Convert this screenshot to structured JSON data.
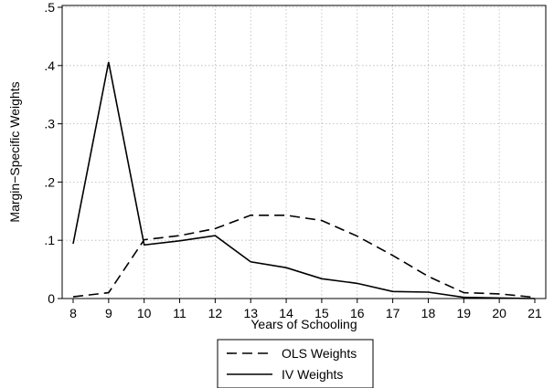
{
  "chart_data": {
    "type": "line",
    "title": "",
    "xlabel": "Years of Schooling",
    "ylabel": "Margin−Specific Weights",
    "x": [
      8,
      9,
      10,
      11,
      12,
      13,
      14,
      15,
      16,
      17,
      18,
      19,
      20,
      21
    ],
    "xlim": [
      8,
      21
    ],
    "ylim": [
      0,
      0.5
    ],
    "x_ticks": [
      "8",
      "9",
      "10",
      "11",
      "12",
      "13",
      "14",
      "15",
      "16",
      "17",
      "18",
      "19",
      "20",
      "21"
    ],
    "y_ticks": [
      {
        "value": 0,
        "label": "0"
      },
      {
        "value": 0.1,
        "label": ".1"
      },
      {
        "value": 0.2,
        "label": ".2"
      },
      {
        "value": 0.3,
        "label": ".3"
      },
      {
        "value": 0.4,
        "label": ".4"
      },
      {
        "value": 0.5,
        "label": ".5"
      }
    ],
    "grid": true,
    "legend_position": "bottom",
    "series": [
      {
        "name": "OLS Weights",
        "style": "dashed",
        "color": "#000000",
        "values": [
          0.003,
          0.01,
          0.101,
          0.108,
          0.12,
          0.143,
          0.143,
          0.134,
          0.107,
          0.074,
          0.038,
          0.01,
          0.008,
          0.002
        ]
      },
      {
        "name": "IV Weights",
        "style": "solid",
        "color": "#000000",
        "values": [
          0.094,
          0.406,
          0.092,
          0.099,
          0.108,
          0.063,
          0.053,
          0.034,
          0.026,
          0.012,
          0.011,
          0.002,
          0.001,
          0.0
        ]
      }
    ]
  }
}
